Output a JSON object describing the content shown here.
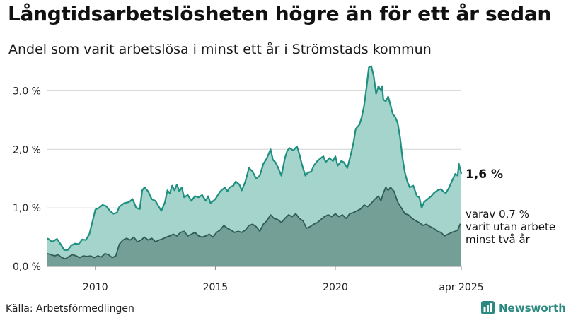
{
  "title": "Långtidsarbetslösheten högre än för ett år sedan",
  "subtitle": "Andel som varit arbetslösa i minst ett år i Strömstads kommun",
  "source": "Källa: Arbetsförmedlingen",
  "brand": {
    "name": "Newsworthy",
    "icon": "newsworthy-bar-chart-icon"
  },
  "colors": {
    "total_line": "#1f8f80",
    "total_fill": "#a4d4cc",
    "long_line": "#2f5d55",
    "long_fill": "#739f97",
    "grid": "#d4d4d4"
  },
  "chart_data": {
    "type": "area",
    "x_unit": "year",
    "ylim": [
      0,
      3.5
    ],
    "xlim": [
      2008.0,
      2025.25
    ],
    "y_ticks": [
      {
        "value": 0,
        "label": "0,0 %"
      },
      {
        "value": 1,
        "label": "1,0 %"
      },
      {
        "value": 2,
        "label": "2,0 %"
      },
      {
        "value": 3,
        "label": "3,0 %"
      }
    ],
    "x_ticks": [
      {
        "value": 2010,
        "label": "2010"
      },
      {
        "value": 2015,
        "label": "2015"
      },
      {
        "value": 2020,
        "label": "2020"
      },
      {
        "value": 2025.25,
        "label": "apr 2025"
      }
    ],
    "grid": true,
    "series": [
      {
        "key": "total",
        "end_label": "1,6 %",
        "points": [
          [
            2008.0,
            0.48
          ],
          [
            2008.2,
            0.42
          ],
          [
            2008.4,
            0.47
          ],
          [
            2008.6,
            0.35
          ],
          [
            2008.7,
            0.28
          ],
          [
            2008.85,
            0.28
          ],
          [
            2009.0,
            0.36
          ],
          [
            2009.15,
            0.39
          ],
          [
            2009.3,
            0.38
          ],
          [
            2009.45,
            0.46
          ],
          [
            2009.6,
            0.45
          ],
          [
            2009.75,
            0.55
          ],
          [
            2009.9,
            0.8
          ],
          [
            2010.0,
            0.97
          ],
          [
            2010.15,
            1.0
          ],
          [
            2010.3,
            1.05
          ],
          [
            2010.45,
            1.03
          ],
          [
            2010.6,
            0.95
          ],
          [
            2010.75,
            0.9
          ],
          [
            2010.9,
            0.92
          ],
          [
            2011.0,
            1.02
          ],
          [
            2011.2,
            1.08
          ],
          [
            2011.4,
            1.1
          ],
          [
            2011.55,
            1.15
          ],
          [
            2011.7,
            1.0
          ],
          [
            2011.85,
            0.98
          ],
          [
            2011.95,
            1.3
          ],
          [
            2012.05,
            1.35
          ],
          [
            2012.2,
            1.28
          ],
          [
            2012.35,
            1.15
          ],
          [
            2012.5,
            1.12
          ],
          [
            2012.6,
            1.05
          ],
          [
            2012.75,
            0.95
          ],
          [
            2012.9,
            1.1
          ],
          [
            2013.0,
            1.3
          ],
          [
            2013.1,
            1.25
          ],
          [
            2013.2,
            1.38
          ],
          [
            2013.3,
            1.3
          ],
          [
            2013.4,
            1.4
          ],
          [
            2013.5,
            1.28
          ],
          [
            2013.6,
            1.35
          ],
          [
            2013.7,
            1.18
          ],
          [
            2013.85,
            1.22
          ],
          [
            2014.0,
            1.12
          ],
          [
            2014.15,
            1.2
          ],
          [
            2014.3,
            1.18
          ],
          [
            2014.45,
            1.22
          ],
          [
            2014.6,
            1.12
          ],
          [
            2014.7,
            1.2
          ],
          [
            2014.8,
            1.08
          ],
          [
            2015.0,
            1.15
          ],
          [
            2015.2,
            1.28
          ],
          [
            2015.4,
            1.35
          ],
          [
            2015.5,
            1.28
          ],
          [
            2015.6,
            1.35
          ],
          [
            2015.75,
            1.38
          ],
          [
            2015.85,
            1.45
          ],
          [
            2016.0,
            1.4
          ],
          [
            2016.1,
            1.3
          ],
          [
            2016.25,
            1.45
          ],
          [
            2016.4,
            1.68
          ],
          [
            2016.55,
            1.62
          ],
          [
            2016.7,
            1.5
          ],
          [
            2016.85,
            1.55
          ],
          [
            2017.0,
            1.75
          ],
          [
            2017.15,
            1.85
          ],
          [
            2017.3,
            2.0
          ],
          [
            2017.4,
            1.82
          ],
          [
            2017.5,
            1.78
          ],
          [
            2017.6,
            1.7
          ],
          [
            2017.75,
            1.55
          ],
          [
            2017.9,
            1.85
          ],
          [
            2018.0,
            1.98
          ],
          [
            2018.1,
            2.02
          ],
          [
            2018.25,
            1.98
          ],
          [
            2018.4,
            2.05
          ],
          [
            2018.5,
            1.92
          ],
          [
            2018.6,
            1.75
          ],
          [
            2018.75,
            1.55
          ],
          [
            2018.85,
            1.6
          ],
          [
            2019.0,
            1.62
          ],
          [
            2019.1,
            1.72
          ],
          [
            2019.25,
            1.8
          ],
          [
            2019.4,
            1.85
          ],
          [
            2019.5,
            1.88
          ],
          [
            2019.6,
            1.78
          ],
          [
            2019.75,
            1.85
          ],
          [
            2019.9,
            1.8
          ],
          [
            2020.0,
            1.88
          ],
          [
            2020.1,
            1.72
          ],
          [
            2020.25,
            1.8
          ],
          [
            2020.35,
            1.78
          ],
          [
            2020.5,
            1.68
          ],
          [
            2020.65,
            1.92
          ],
          [
            2020.75,
            2.1
          ],
          [
            2020.85,
            2.35
          ],
          [
            2021.0,
            2.42
          ],
          [
            2021.1,
            2.55
          ],
          [
            2021.2,
            2.75
          ],
          [
            2021.3,
            3.05
          ],
          [
            2021.4,
            3.4
          ],
          [
            2021.5,
            3.42
          ],
          [
            2021.6,
            3.25
          ],
          [
            2021.7,
            2.95
          ],
          [
            2021.8,
            3.08
          ],
          [
            2021.9,
            3.0
          ],
          [
            2021.95,
            3.08
          ],
          [
            2022.0,
            2.85
          ],
          [
            2022.1,
            2.82
          ],
          [
            2022.2,
            2.9
          ],
          [
            2022.3,
            2.75
          ],
          [
            2022.4,
            2.6
          ],
          [
            2022.5,
            2.55
          ],
          [
            2022.6,
            2.45
          ],
          [
            2022.7,
            2.2
          ],
          [
            2022.8,
            1.85
          ],
          [
            2022.9,
            1.6
          ],
          [
            2023.0,
            1.45
          ],
          [
            2023.1,
            1.35
          ],
          [
            2023.25,
            1.38
          ],
          [
            2023.4,
            1.2
          ],
          [
            2023.5,
            1.18
          ],
          [
            2023.6,
            1.0
          ],
          [
            2023.7,
            1.1
          ],
          [
            2023.85,
            1.15
          ],
          [
            2024.0,
            1.2
          ],
          [
            2024.1,
            1.25
          ],
          [
            2024.25,
            1.3
          ],
          [
            2024.4,
            1.32
          ],
          [
            2024.5,
            1.28
          ],
          [
            2024.6,
            1.25
          ],
          [
            2024.75,
            1.35
          ],
          [
            2024.85,
            1.45
          ],
          [
            2025.0,
            1.58
          ],
          [
            2025.1,
            1.55
          ],
          [
            2025.15,
            1.75
          ],
          [
            2025.25,
            1.58
          ]
        ]
      },
      {
        "key": "long_term",
        "end_label": [
          "varav 0,7 %",
          "varit utan arbete",
          "minst två år"
        ],
        "points": [
          [
            2008.0,
            0.22
          ],
          [
            2008.15,
            0.2
          ],
          [
            2008.3,
            0.18
          ],
          [
            2008.45,
            0.2
          ],
          [
            2008.6,
            0.15
          ],
          [
            2008.75,
            0.13
          ],
          [
            2008.9,
            0.17
          ],
          [
            2009.05,
            0.2
          ],
          [
            2009.2,
            0.18
          ],
          [
            2009.35,
            0.15
          ],
          [
            2009.5,
            0.18
          ],
          [
            2009.65,
            0.17
          ],
          [
            2009.8,
            0.18
          ],
          [
            2009.95,
            0.15
          ],
          [
            2010.1,
            0.18
          ],
          [
            2010.25,
            0.16
          ],
          [
            2010.4,
            0.22
          ],
          [
            2010.55,
            0.2
          ],
          [
            2010.7,
            0.15
          ],
          [
            2010.85,
            0.18
          ],
          [
            2011.0,
            0.38
          ],
          [
            2011.15,
            0.45
          ],
          [
            2011.3,
            0.48
          ],
          [
            2011.45,
            0.45
          ],
          [
            2011.6,
            0.5
          ],
          [
            2011.75,
            0.42
          ],
          [
            2011.9,
            0.45
          ],
          [
            2012.05,
            0.5
          ],
          [
            2012.2,
            0.45
          ],
          [
            2012.35,
            0.48
          ],
          [
            2012.5,
            0.42
          ],
          [
            2012.65,
            0.45
          ],
          [
            2012.8,
            0.47
          ],
          [
            2012.95,
            0.5
          ],
          [
            2013.1,
            0.52
          ],
          [
            2013.25,
            0.55
          ],
          [
            2013.4,
            0.52
          ],
          [
            2013.55,
            0.58
          ],
          [
            2013.7,
            0.6
          ],
          [
            2013.85,
            0.52
          ],
          [
            2014.0,
            0.55
          ],
          [
            2014.15,
            0.58
          ],
          [
            2014.3,
            0.52
          ],
          [
            2014.45,
            0.5
          ],
          [
            2014.6,
            0.52
          ],
          [
            2014.75,
            0.55
          ],
          [
            2014.9,
            0.5
          ],
          [
            2015.05,
            0.58
          ],
          [
            2015.2,
            0.62
          ],
          [
            2015.35,
            0.7
          ],
          [
            2015.5,
            0.65
          ],
          [
            2015.65,
            0.62
          ],
          [
            2015.8,
            0.58
          ],
          [
            2015.95,
            0.6
          ],
          [
            2016.1,
            0.58
          ],
          [
            2016.25,
            0.62
          ],
          [
            2016.4,
            0.7
          ],
          [
            2016.55,
            0.72
          ],
          [
            2016.7,
            0.68
          ],
          [
            2016.85,
            0.6
          ],
          [
            2017.0,
            0.72
          ],
          [
            2017.15,
            0.78
          ],
          [
            2017.3,
            0.88
          ],
          [
            2017.45,
            0.82
          ],
          [
            2017.6,
            0.8
          ],
          [
            2017.75,
            0.75
          ],
          [
            2017.9,
            0.82
          ],
          [
            2018.05,
            0.88
          ],
          [
            2018.2,
            0.85
          ],
          [
            2018.35,
            0.9
          ],
          [
            2018.5,
            0.82
          ],
          [
            2018.65,
            0.78
          ],
          [
            2018.8,
            0.65
          ],
          [
            2018.95,
            0.68
          ],
          [
            2019.1,
            0.72
          ],
          [
            2019.25,
            0.75
          ],
          [
            2019.4,
            0.8
          ],
          [
            2019.55,
            0.85
          ],
          [
            2019.7,
            0.88
          ],
          [
            2019.85,
            0.85
          ],
          [
            2020.0,
            0.9
          ],
          [
            2020.15,
            0.85
          ],
          [
            2020.3,
            0.88
          ],
          [
            2020.45,
            0.82
          ],
          [
            2020.6,
            0.9
          ],
          [
            2020.75,
            0.92
          ],
          [
            2020.9,
            0.95
          ],
          [
            2021.05,
            0.98
          ],
          [
            2021.2,
            1.05
          ],
          [
            2021.35,
            1.02
          ],
          [
            2021.5,
            1.08
          ],
          [
            2021.65,
            1.15
          ],
          [
            2021.8,
            1.2
          ],
          [
            2021.9,
            1.12
          ],
          [
            2022.0,
            1.25
          ],
          [
            2022.1,
            1.35
          ],
          [
            2022.2,
            1.3
          ],
          [
            2022.3,
            1.35
          ],
          [
            2022.45,
            1.28
          ],
          [
            2022.6,
            1.1
          ],
          [
            2022.75,
            1.0
          ],
          [
            2022.9,
            0.9
          ],
          [
            2023.05,
            0.88
          ],
          [
            2023.2,
            0.82
          ],
          [
            2023.35,
            0.78
          ],
          [
            2023.5,
            0.75
          ],
          [
            2023.65,
            0.7
          ],
          [
            2023.8,
            0.72
          ],
          [
            2023.95,
            0.68
          ],
          [
            2024.1,
            0.65
          ],
          [
            2024.25,
            0.6
          ],
          [
            2024.4,
            0.58
          ],
          [
            2024.55,
            0.52
          ],
          [
            2024.7,
            0.55
          ],
          [
            2024.85,
            0.58
          ],
          [
            2025.0,
            0.6
          ],
          [
            2025.1,
            0.62
          ],
          [
            2025.2,
            0.72
          ],
          [
            2025.25,
            0.7
          ]
        ]
      }
    ]
  }
}
